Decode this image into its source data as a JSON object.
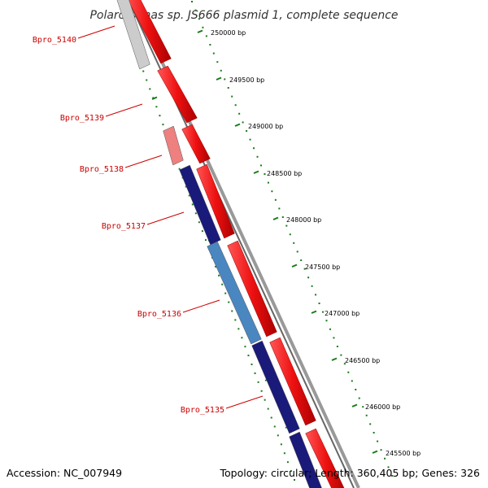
{
  "title": "Polaromonas sp. JS666 plasmid 1, complete sequence",
  "footer": {
    "accession": "Accession: NC_007949",
    "summary": "Topology: circular; Length: 360,405 bp; Genes: 326"
  },
  "colors": {
    "forward_gene": "#ee1111",
    "backbone": "#888888",
    "tick": "#1a7a1a",
    "label": "#cc0000"
  },
  "ticks": [
    {
      "bp": 250000,
      "label": "250000 bp"
    },
    {
      "bp": 249500,
      "label": "249500 bp"
    },
    {
      "bp": 249000,
      "label": "249000 bp"
    },
    {
      "bp": 248500,
      "label": "248500 bp"
    },
    {
      "bp": 248000,
      "label": "248000 bp"
    },
    {
      "bp": 247500,
      "label": "247500 bp"
    },
    {
      "bp": 247000,
      "label": "247000 bp"
    },
    {
      "bp": 246500,
      "label": "246500 bp"
    },
    {
      "bp": 246000,
      "label": "246000 bp"
    },
    {
      "bp": 245500,
      "label": "245500 bp"
    }
  ],
  "reverse_genes": [
    {
      "name": "Bpro_5140",
      "color": "#cccccc"
    },
    {
      "name": "Bpro_5139",
      "color": ""
    },
    {
      "name": "Bpro_5138",
      "color": "#ee8080"
    },
    {
      "name": "Bpro_5137",
      "color": "#1a1a7a"
    },
    {
      "name": "Bpro_5136",
      "color": "#4a86c0"
    },
    {
      "name": "Bpro_5135",
      "color": "#1a1a7a"
    },
    {
      "name": "",
      "color": "#1a1a7a"
    }
  ]
}
